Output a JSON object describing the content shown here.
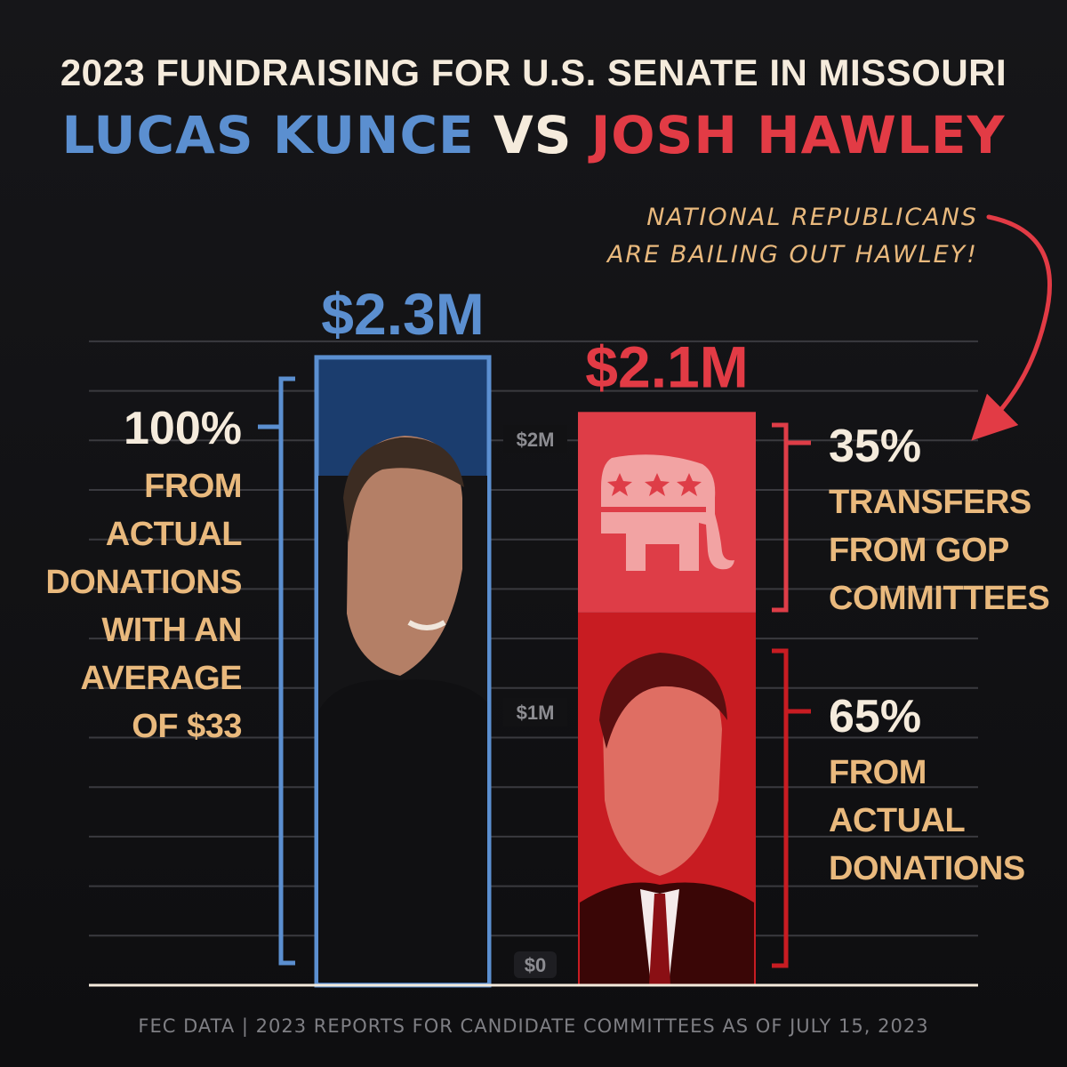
{
  "title_line1": "2023 FUNDRAISING FOR U.S. SENATE IN MISSOURI",
  "title_line2": {
    "candidate_a": "LUCAS KUNCE",
    "vs": "VS",
    "candidate_b": "JOSH HAWLEY"
  },
  "annotation_line1": "NATIONAL REPUBLICANS",
  "annotation_line2": "ARE BAILING OUT HAWLEY!",
  "left_callout": {
    "percent": "100%",
    "lines": [
      "FROM",
      "ACTUAL",
      "DONATIONS",
      "WITH AN",
      "AVERAGE",
      "OF $33"
    ]
  },
  "right_callouts": {
    "gop": {
      "percent": "35%",
      "lines": [
        "TRANSFERS",
        "FROM GOP",
        "COMMITTEES"
      ]
    },
    "donations": {
      "percent": "65%",
      "lines": [
        "FROM",
        "ACTUAL",
        "DONATIONS"
      ]
    }
  },
  "footer": "FEC DATA | 2023 REPORTS FOR CANDIDATE COMMITTEES AS OF JULY 15, 2023",
  "icons": {
    "gop_logo": "republican-elephant-icon",
    "kunce_photo": "lucas-kunce-photo",
    "hawley_photo": "josh-hawley-photo"
  },
  "colors": {
    "kunce": "#5b8fd0",
    "kunce_bar": "#1b3d6e",
    "hawley": "#e23b45",
    "hawley_gop": "#de3d47",
    "hawley_donations": "#c81c22",
    "accent_text": "#e9b97d",
    "light_text": "#f5ebdc"
  },
  "chart_data": {
    "type": "bar",
    "categories": [
      "LUCAS KUNCE",
      "JOSH HAWLEY"
    ],
    "value_labels": [
      "$2.3M",
      "$2.1M"
    ],
    "ytick_labels": [
      "$0",
      "$1M",
      "$2M"
    ],
    "ytick_values": [
      0,
      1,
      2
    ],
    "ylim": [
      0,
      2.5
    ],
    "grid": true,
    "series": [
      {
        "name": "FROM ACTUAL DONATIONS",
        "values": [
          2.3,
          1.365
        ]
      },
      {
        "name": "TRANSFERS FROM GOP COMMITTEES",
        "values": [
          0,
          0.735
        ]
      }
    ]
  }
}
